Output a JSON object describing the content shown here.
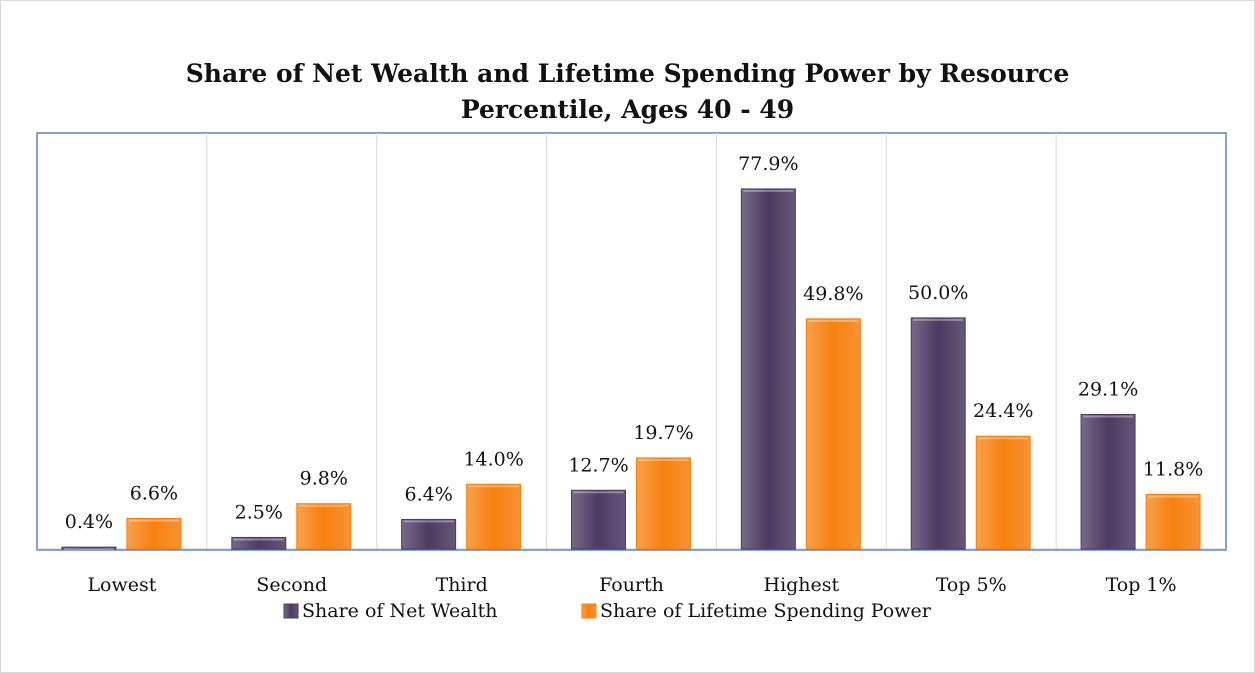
{
  "chart_data": {
    "type": "bar",
    "title": "Share of Net Wealth and Lifetime Spending Power by Resource Percentile, Ages 40 - 49",
    "categories": [
      "Lowest",
      "Second",
      "Third",
      "Fourth",
      "Highest",
      "Top 5%",
      "Top 1%"
    ],
    "series": [
      {
        "name": "Share of Net Wealth",
        "color": "#4b3a62",
        "values": [
          0.4,
          2.5,
          6.4,
          12.7,
          77.9,
          50.0,
          29.1
        ],
        "value_labels": [
          "0.4%",
          "2.5%",
          "6.4%",
          "12.7%",
          "77.9%",
          "50.0%",
          "29.1%"
        ]
      },
      {
        "name": "Share of Lifetime Spending Power",
        "color": "#f7800f",
        "values": [
          6.6,
          9.8,
          14.0,
          19.7,
          49.8,
          24.4,
          11.8
        ],
        "value_labels": [
          "6.6%",
          "9.8%",
          "14.0%",
          "19.7%",
          "49.8%",
          "24.4%",
          "11.8%"
        ]
      }
    ],
    "ylim": [
      0,
      90
    ],
    "legend": "bottom"
  }
}
